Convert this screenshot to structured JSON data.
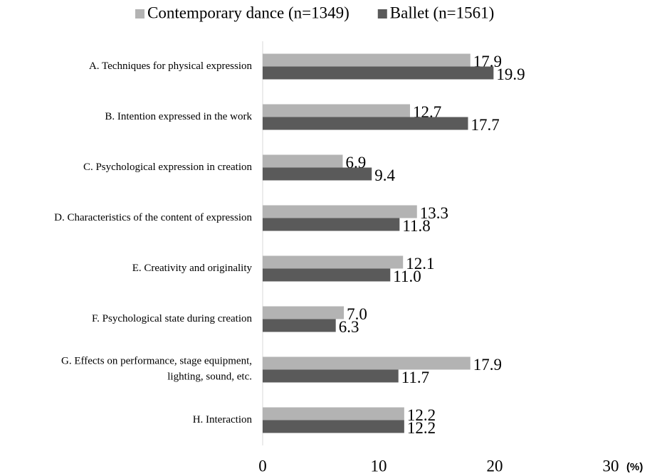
{
  "chart_data": {
    "type": "bar",
    "orientation": "horizontal",
    "categories": [
      "A. Techniques for physical expression",
      "B. Intention expressed in the work",
      "C. Psychological expression in creation",
      "D. Characteristics of the content of expression",
      "E. Creativity and originality",
      "F. Psychological state during creation",
      "G. Effects on performance, stage equipment,\nlighting, sound, etc.",
      "H. Interaction"
    ],
    "series": [
      {
        "name": "Contemporary dance (n=1349)",
        "color": "#b3b3b3",
        "values": [
          17.9,
          12.7,
          6.9,
          13.3,
          12.1,
          7.0,
          17.9,
          12.2
        ],
        "value_labels": [
          "17.9",
          "12.7",
          "6.9",
          "13.3",
          "12.1",
          "7.0",
          "17.9",
          "12.2"
        ]
      },
      {
        "name": "Ballet (n=1561)",
        "color": "#5a5a5a",
        "values": [
          19.9,
          17.7,
          9.4,
          11.8,
          11.0,
          6.3,
          11.7,
          12.2
        ],
        "value_labels": [
          "19.9",
          "17.7",
          "9.4",
          "11.8",
          "11.0",
          "6.3",
          "11.7",
          "12.2"
        ]
      }
    ],
    "xlim": [
      0,
      30
    ],
    "xticks": [
      0,
      10,
      20,
      30
    ],
    "x_label": "(%)",
    "legend": "top"
  }
}
